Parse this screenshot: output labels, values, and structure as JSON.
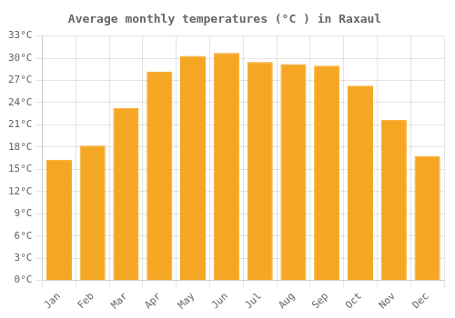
{
  "chart_data": {
    "type": "bar",
    "title": "Average monthly temperatures (°C ) in Raxaul",
    "categories": [
      "Jan",
      "Feb",
      "Mar",
      "Apr",
      "May",
      "Jun",
      "Jul",
      "Aug",
      "Sep",
      "Oct",
      "Nov",
      "Dec"
    ],
    "values": [
      16.3,
      18.2,
      23.3,
      28.2,
      30.3,
      30.7,
      29.5,
      29.2,
      29.0,
      26.3,
      21.7,
      16.8
    ],
    "color": "#F5A623",
    "ylim": [
      0,
      33
    ],
    "yticks": [
      {
        "value": 0,
        "label": "0°C"
      },
      {
        "value": 3,
        "label": "3°C"
      },
      {
        "value": 6,
        "label": "6°C"
      },
      {
        "value": 9,
        "label": "9°C"
      },
      {
        "value": 12,
        "label": "12°C"
      },
      {
        "value": 15,
        "label": "15°C"
      },
      {
        "value": 18,
        "label": "18°C"
      },
      {
        "value": 21,
        "label": "21°C"
      },
      {
        "value": 24,
        "label": "24°C"
      },
      {
        "value": 27,
        "label": "27°C"
      },
      {
        "value": 30,
        "label": "30°C"
      },
      {
        "value": 33,
        "label": "33°C"
      }
    ],
    "grid": true
  }
}
